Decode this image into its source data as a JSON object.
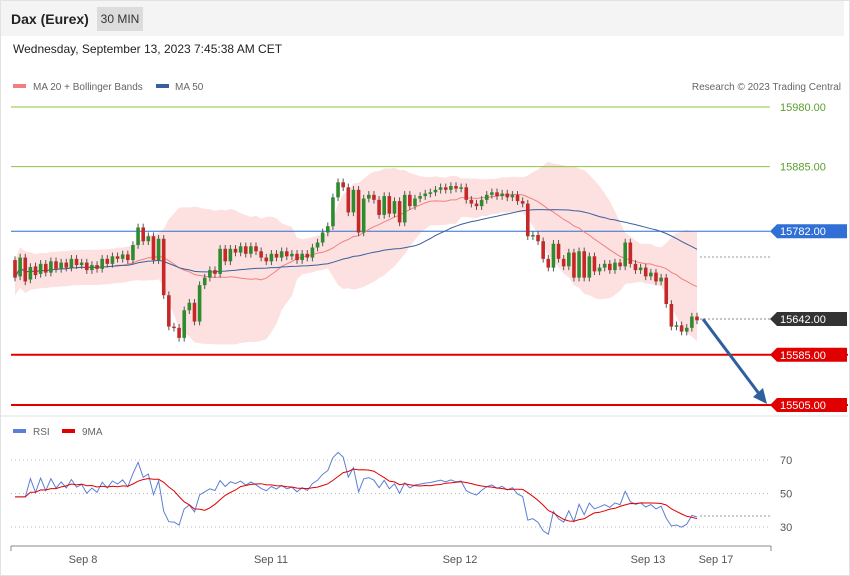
{
  "header": {
    "title": "Dax (Eurex)",
    "timeframe": "30 MIN"
  },
  "datetime": "Wednesday, September 13, 2023 7:45:38 AM CET",
  "legend": {
    "price": [
      {
        "label": "MA 20 + Bollinger Bands",
        "color": "#f08080"
      },
      {
        "label": "MA 50",
        "color": "#3a5f9f"
      }
    ],
    "rsi": [
      {
        "label": "RSI",
        "color": "#5b7fd6"
      },
      {
        "label": "9MA",
        "color": "#e00000"
      }
    ]
  },
  "credit": "Research © 2023 Trading Central",
  "chart_data": {
    "type": "candlestick",
    "x_ticks": [
      "Sep 8",
      "Sep 11",
      "Sep 12",
      "Sep 13",
      "Sep 17"
    ],
    "y_min": 15490,
    "y_max": 15995,
    "levels": [
      {
        "value": 15980.0,
        "label": "15980.00",
        "style": "target",
        "color": "#8cc63f"
      },
      {
        "value": 15885.0,
        "label": "15885.00",
        "style": "target",
        "color": "#8cc63f"
      },
      {
        "value": 15782.0,
        "label": "15782.00",
        "style": "pivot",
        "color": "#2f6fd6"
      },
      {
        "value": 15642.0,
        "label": "15642.00",
        "style": "last",
        "color": "#333333"
      },
      {
        "value": 15585.0,
        "label": "15585.00",
        "style": "support",
        "color": "#e00000"
      },
      {
        "value": 15505.0,
        "label": "15505.00",
        "style": "support",
        "color": "#e00000"
      }
    ],
    "forecast_arrow": {
      "from": 15642,
      "to": 15505,
      "color": "#2f5f9f"
    },
    "candles": [
      [
        15736,
        15708
      ],
      [
        15710,
        15740
      ],
      [
        15740,
        15702
      ],
      [
        15705,
        15725
      ],
      [
        15726,
        15712
      ],
      [
        15714,
        15730
      ],
      [
        15730,
        15716
      ],
      [
        15716,
        15734
      ],
      [
        15734,
        15722
      ],
      [
        15722,
        15732
      ],
      [
        15732,
        15724
      ],
      [
        15724,
        15738
      ],
      [
        15738,
        15728
      ],
      [
        15728,
        15732
      ],
      [
        15732,
        15720
      ],
      [
        15720,
        15728
      ],
      [
        15728,
        15722
      ],
      [
        15722,
        15738
      ],
      [
        15738,
        15730
      ],
      [
        15730,
        15742
      ],
      [
        15742,
        15738
      ],
      [
        15738,
        15745
      ],
      [
        15745,
        15736
      ],
      [
        15736,
        15760
      ],
      [
        15760,
        15788
      ],
      [
        15788,
        15766
      ],
      [
        15766,
        15774
      ],
      [
        15774,
        15736
      ],
      [
        15736,
        15770
      ],
      [
        15770,
        15680
      ],
      [
        15680,
        15630
      ],
      [
        15630,
        15628
      ],
      [
        15628,
        15612
      ],
      [
        15612,
        15656
      ],
      [
        15656,
        15668
      ],
      [
        15668,
        15638
      ],
      [
        15638,
        15696
      ],
      [
        15696,
        15708
      ],
      [
        15708,
        15720
      ],
      [
        15720,
        15714
      ],
      [
        15714,
        15754
      ],
      [
        15754,
        15734
      ],
      [
        15734,
        15754
      ],
      [
        15754,
        15748
      ],
      [
        15748,
        15758
      ],
      [
        15758,
        15746
      ],
      [
        15746,
        15758
      ],
      [
        15758,
        15750
      ],
      [
        15750,
        15740
      ],
      [
        15740,
        15734
      ],
      [
        15734,
        15746
      ],
      [
        15746,
        15740
      ],
      [
        15740,
        15750
      ],
      [
        15750,
        15742
      ],
      [
        15742,
        15746
      ],
      [
        15746,
        15736
      ],
      [
        15736,
        15746
      ],
      [
        15746,
        15740
      ],
      [
        15740,
        15756
      ],
      [
        15756,
        15764
      ],
      [
        15764,
        15780
      ],
      [
        15780,
        15790
      ],
      [
        15790,
        15836
      ],
      [
        15836,
        15860
      ],
      [
        15860,
        15852
      ],
      [
        15852,
        15812
      ],
      [
        15812,
        15848
      ],
      [
        15848,
        15780
      ],
      [
        15780,
        15834
      ],
      [
        15834,
        15840
      ],
      [
        15840,
        15832
      ],
      [
        15832,
        15808
      ],
      [
        15808,
        15838
      ],
      [
        15838,
        15810
      ],
      [
        15810,
        15830
      ],
      [
        15830,
        15796
      ],
      [
        15796,
        15840
      ],
      [
        15840,
        15822
      ],
      [
        15822,
        15834
      ],
      [
        15834,
        15838
      ],
      [
        15838,
        15842
      ],
      [
        15842,
        15844
      ],
      [
        15844,
        15848
      ],
      [
        15848,
        15852
      ],
      [
        15852,
        15848
      ],
      [
        15848,
        15854
      ],
      [
        15854,
        15850
      ],
      [
        15850,
        15852
      ],
      [
        15852,
        15832
      ],
      [
        15832,
        15826
      ],
      [
        15826,
        15822
      ],
      [
        15822,
        15832
      ],
      [
        15832,
        15840
      ],
      [
        15840,
        15844
      ],
      [
        15844,
        15838
      ],
      [
        15838,
        15842
      ],
      [
        15842,
        15836
      ],
      [
        15836,
        15840
      ],
      [
        15840,
        15830
      ],
      [
        15830,
        15826
      ],
      [
        15826,
        15774
      ],
      [
        15774,
        15776
      ],
      [
        15776,
        15766
      ],
      [
        15766,
        15738
      ],
      [
        15738,
        15724
      ],
      [
        15724,
        15762
      ],
      [
        15762,
        15738
      ],
      [
        15738,
        15726
      ],
      [
        15726,
        15748
      ],
      [
        15748,
        15708
      ],
      [
        15708,
        15750
      ],
      [
        15750,
        15708
      ],
      [
        15708,
        15742
      ],
      [
        15742,
        15718
      ],
      [
        15718,
        15724
      ],
      [
        15724,
        15730
      ],
      [
        15730,
        15720
      ],
      [
        15720,
        15732
      ],
      [
        15732,
        15726
      ],
      [
        15726,
        15764
      ],
      [
        15764,
        15730
      ],
      [
        15730,
        15720
      ],
      [
        15720,
        15724
      ],
      [
        15724,
        15710
      ],
      [
        15710,
        15716
      ],
      [
        15716,
        15702
      ],
      [
        15702,
        15708
      ],
      [
        15708,
        15666
      ],
      [
        15666,
        15630
      ],
      [
        15630,
        15632
      ],
      [
        15632,
        15622
      ],
      [
        15622,
        15628
      ],
      [
        15628,
        15646
      ],
      [
        15646,
        15640
      ]
    ],
    "rsi": {
      "y_ticks": [
        70,
        50,
        30
      ]
    }
  }
}
